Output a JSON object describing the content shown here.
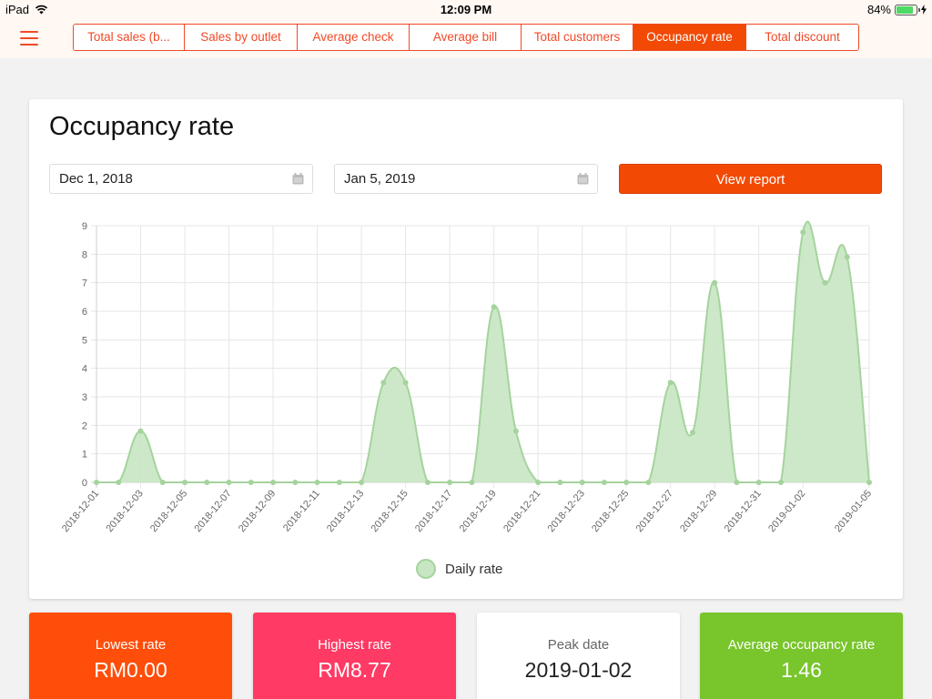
{
  "status": {
    "device": "iPad",
    "time": "12:09 PM",
    "battery": "84%",
    "battery_level": 0.84
  },
  "tabs": [
    {
      "label": "Total sales (b...",
      "active": false
    },
    {
      "label": "Sales by outlet",
      "active": false
    },
    {
      "label": "Average check",
      "active": false
    },
    {
      "label": "Average bill",
      "active": false
    },
    {
      "label": "Total customers",
      "active": false
    },
    {
      "label": "Occupancy rate",
      "active": true
    },
    {
      "label": "Total discount",
      "active": false
    }
  ],
  "page": {
    "title": "Occupancy rate",
    "start_date": "Dec 1, 2018",
    "end_date": "Jan 5, 2019",
    "view_button": "View report"
  },
  "colors": {
    "accent": "#f24a05",
    "series_fill": "#c8e6c3",
    "series_stroke": "#a5d39d",
    "stat_lowest": "#ff4e0a",
    "stat_highest": "#ff3a64",
    "stat_peak": "#ffffff",
    "stat_average": "#78c52c"
  },
  "chart_data": {
    "type": "area",
    "title": "",
    "xlabel": "",
    "ylabel": "",
    "ylim": [
      0,
      9
    ],
    "yticks": [
      "0",
      "1",
      "2",
      "3",
      "4",
      "5",
      "6",
      "7",
      "8",
      "9"
    ],
    "grid": true,
    "legend_position": "bottom",
    "tick_labels": [
      "2018-12-01",
      "2018-12-03",
      "2018-12-05",
      "2018-12-07",
      "2018-12-09",
      "2018-12-11",
      "2018-12-13",
      "2018-12-15",
      "2018-12-17",
      "2018-12-19",
      "2018-12-21",
      "2018-12-23",
      "2018-12-25",
      "2018-12-27",
      "2018-12-29",
      "2018-12-31",
      "2019-01-02",
      "2019-01-05"
    ],
    "x": [
      "2018-12-01",
      "2018-12-02",
      "2018-12-03",
      "2018-12-04",
      "2018-12-05",
      "2018-12-06",
      "2018-12-07",
      "2018-12-08",
      "2018-12-09",
      "2018-12-10",
      "2018-12-11",
      "2018-12-12",
      "2018-12-13",
      "2018-12-14",
      "2018-12-15",
      "2018-12-16",
      "2018-12-17",
      "2018-12-18",
      "2018-12-19",
      "2018-12-20",
      "2018-12-21",
      "2018-12-22",
      "2018-12-23",
      "2018-12-24",
      "2018-12-25",
      "2018-12-26",
      "2018-12-27",
      "2018-12-28",
      "2018-12-29",
      "2018-12-30",
      "2018-12-31",
      "2019-01-01",
      "2019-01-02",
      "2019-01-03",
      "2019-01-04",
      "2019-01-05"
    ],
    "series": [
      {
        "name": "Daily rate",
        "values": [
          0,
          0,
          1.8,
          0,
          0,
          0,
          0,
          0,
          0,
          0,
          0,
          0,
          0,
          3.5,
          3.5,
          0,
          0,
          0,
          6.15,
          1.8,
          0,
          0,
          0,
          0,
          0,
          0,
          3.5,
          1.75,
          7.0,
          0,
          0,
          0,
          8.77,
          7.0,
          7.9,
          0
        ]
      }
    ]
  },
  "stats": [
    {
      "label": "Lowest rate",
      "value": "RM0.00"
    },
    {
      "label": "Highest rate",
      "value": "RM8.77"
    },
    {
      "label": "Peak date",
      "value": "2019-01-02"
    },
    {
      "label": "Average occupancy rate",
      "value": "1.46"
    }
  ]
}
